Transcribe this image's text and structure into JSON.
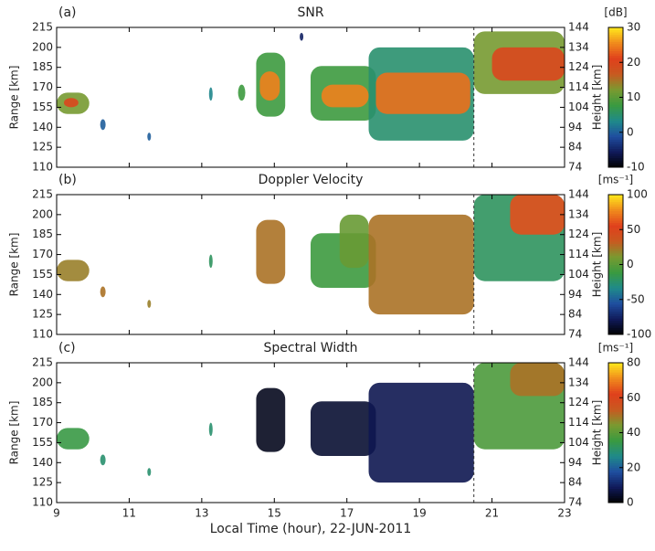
{
  "chart_data": [
    {
      "type": "heatmap",
      "panel_label": "(a)",
      "title": "SNR",
      "ylabel": "Range [km]",
      "y2label": "Height [km]",
      "colorbar_label": "[dB]",
      "xlim": [
        9,
        23
      ],
      "xticks": [
        9,
        11,
        13,
        15,
        17,
        19,
        21,
        23
      ],
      "xticklabels": false,
      "ylim": [
        110,
        215
      ],
      "yticks": [
        110,
        125,
        140,
        155,
        170,
        185,
        200,
        215
      ],
      "y2lim": [
        74,
        144
      ],
      "y2ticks": [
        74,
        84,
        94,
        104,
        114,
        124,
        134,
        144
      ],
      "clim": [
        -10,
        30
      ],
      "cticks": [
        -10,
        0,
        10,
        20,
        30
      ],
      "colormap": [
        "#000000",
        "#101a5a",
        "#1f4fa0",
        "#1f8a8a",
        "#3a9a40",
        "#7a9a30",
        "#c85a20",
        "#e0401c",
        "#f08a1c",
        "#ffe81c"
      ],
      "vline": 20.5,
      "patches": [
        {
          "time": [
            9.0,
            9.9
          ],
          "range": [
            150,
            166
          ],
          "value": 12
        },
        {
          "time": [
            9.2,
            9.6
          ],
          "range": [
            155,
            162
          ],
          "value": 20
        },
        {
          "time": [
            10.2,
            10.35
          ],
          "range": [
            138,
            146
          ],
          "value": 0
        },
        {
          "time": [
            11.5,
            11.6
          ],
          "range": [
            130,
            136
          ],
          "value": 0
        },
        {
          "time": [
            13.2,
            13.3
          ],
          "range": [
            160,
            170
          ],
          "value": 3
        },
        {
          "time": [
            14.0,
            14.2
          ],
          "range": [
            160,
            172
          ],
          "value": 8
        },
        {
          "time": [
            14.5,
            15.3
          ],
          "range": [
            148,
            196
          ],
          "value": 8
        },
        {
          "time": [
            14.6,
            15.15
          ],
          "range": [
            160,
            182
          ],
          "value": 25
        },
        {
          "time": [
            15.7,
            15.8
          ],
          "range": [
            205,
            211
          ],
          "value": -5
        },
        {
          "time": [
            16.0,
            17.8
          ],
          "range": [
            145,
            186
          ],
          "value": 8
        },
        {
          "time": [
            16.3,
            17.6
          ],
          "range": [
            155,
            172
          ],
          "value": 25
        },
        {
          "time": [
            17.6,
            20.5
          ],
          "range": [
            130,
            200
          ],
          "value": 5
        },
        {
          "time": [
            17.8,
            20.4
          ],
          "range": [
            150,
            181
          ],
          "value": 24
        },
        {
          "time": [
            20.5,
            23.0
          ],
          "range": [
            165,
            212
          ],
          "value": 12
        },
        {
          "time": [
            21.0,
            23.0
          ],
          "range": [
            175,
            200
          ],
          "value": 20
        }
      ]
    },
    {
      "type": "heatmap",
      "panel_label": "(b)",
      "title": "Doppler Velocity",
      "ylabel": "Range [km]",
      "y2label": "Height [km]",
      "colorbar_label": "[ms⁻¹]",
      "xlim": [
        9,
        23
      ],
      "xticks": [
        9,
        11,
        13,
        15,
        17,
        19,
        21,
        23
      ],
      "xticklabels": false,
      "ylim": [
        110,
        215
      ],
      "yticks": [
        110,
        125,
        140,
        155,
        170,
        185,
        200,
        215
      ],
      "y2lim": [
        74,
        144
      ],
      "y2ticks": [
        74,
        84,
        94,
        104,
        114,
        124,
        134,
        144
      ],
      "clim": [
        -100,
        100
      ],
      "cticks": [
        -100,
        -50,
        0,
        50,
        100
      ],
      "colormap": [
        "#000000",
        "#101a5a",
        "#1f4fa0",
        "#1f8a8a",
        "#3a9a40",
        "#7a9a30",
        "#c85a20",
        "#e0401c",
        "#f08a1c",
        "#ffe81c"
      ],
      "vline": 20.5,
      "patches": [
        {
          "time": [
            9.0,
            9.9
          ],
          "range": [
            150,
            166
          ],
          "value": 20
        },
        {
          "time": [
            10.2,
            10.35
          ],
          "range": [
            138,
            146
          ],
          "value": 25
        },
        {
          "time": [
            11.5,
            11.6
          ],
          "range": [
            130,
            136
          ],
          "value": 20
        },
        {
          "time": [
            13.2,
            13.3
          ],
          "range": [
            160,
            170
          ],
          "value": -20
        },
        {
          "time": [
            14.5,
            15.3
          ],
          "range": [
            148,
            196
          ],
          "value": 25
        },
        {
          "time": [
            16.0,
            17.8
          ],
          "range": [
            145,
            186
          ],
          "value": -10
        },
        {
          "time": [
            16.8,
            17.6
          ],
          "range": [
            160,
            200
          ],
          "value": 5
        },
        {
          "time": [
            17.6,
            20.5
          ],
          "range": [
            125,
            200
          ],
          "value": 25
        },
        {
          "time": [
            20.5,
            23.0
          ],
          "range": [
            150,
            215
          ],
          "value": -20
        },
        {
          "time": [
            21.5,
            23.0
          ],
          "range": [
            185,
            215
          ],
          "value": 60
        }
      ]
    },
    {
      "type": "heatmap",
      "panel_label": "(c)",
      "title": "Spectral Width",
      "ylabel": "Range [km]",
      "y2label": "Height [km]",
      "colorbar_label": "[ms⁻¹]",
      "xlabel": "Local Time (hour), 22-JUN-2011",
      "xlim": [
        9,
        23
      ],
      "xticks": [
        9,
        11,
        13,
        15,
        17,
        19,
        21,
        23
      ],
      "xticklabels": true,
      "ylim": [
        110,
        215
      ],
      "yticks": [
        110,
        125,
        140,
        155,
        170,
        185,
        200,
        215
      ],
      "y2lim": [
        74,
        144
      ],
      "y2ticks": [
        74,
        84,
        94,
        104,
        114,
        124,
        134,
        144
      ],
      "clim": [
        0,
        80
      ],
      "cticks": [
        0,
        20,
        40,
        60,
        80
      ],
      "colormap": [
        "#000000",
        "#101a5a",
        "#1f4fa0",
        "#1f8a8a",
        "#3a9a40",
        "#7a9a30",
        "#c85a20",
        "#e0401c",
        "#f08a1c",
        "#ffe81c"
      ],
      "vline": 20.5,
      "patches": [
        {
          "time": [
            9.0,
            9.9
          ],
          "range": [
            150,
            166
          ],
          "value": 35
        },
        {
          "time": [
            10.2,
            10.35
          ],
          "range": [
            138,
            146
          ],
          "value": 30
        },
        {
          "time": [
            11.5,
            11.6
          ],
          "range": [
            130,
            136
          ],
          "value": 30
        },
        {
          "time": [
            13.2,
            13.3
          ],
          "range": [
            160,
            170
          ],
          "value": 30
        },
        {
          "time": [
            14.5,
            15.3
          ],
          "range": [
            148,
            196
          ],
          "value": 3
        },
        {
          "time": [
            16.0,
            17.8
          ],
          "range": [
            145,
            186
          ],
          "value": 5
        },
        {
          "time": [
            17.6,
            20.5
          ],
          "range": [
            125,
            200
          ],
          "value": 8
        },
        {
          "time": [
            20.5,
            23.0
          ],
          "range": [
            150,
            215
          ],
          "value": 38
        },
        {
          "time": [
            21.5,
            23.0
          ],
          "range": [
            190,
            215
          ],
          "value": 50
        }
      ]
    }
  ]
}
